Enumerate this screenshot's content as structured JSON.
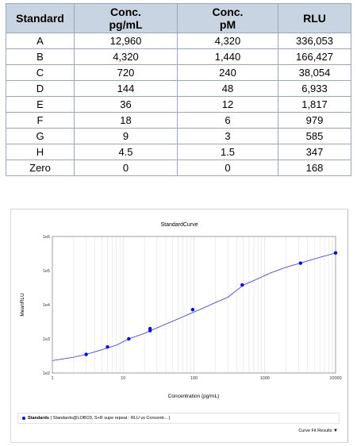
{
  "table": {
    "headers": [
      {
        "line1": "Standard",
        "line2": ""
      },
      {
        "line1": "Conc.",
        "line2": "pg/mL"
      },
      {
        "line1": "Conc.",
        "line2": "pM"
      },
      {
        "line1": "RLU",
        "line2": ""
      }
    ],
    "rows": [
      [
        "A",
        "12,960",
        "4,320",
        "336,053"
      ],
      [
        "B",
        "4,320",
        "1,440",
        "166,427"
      ],
      [
        "C",
        "720",
        "240",
        "38,054"
      ],
      [
        "D",
        "144",
        "48",
        "6,933"
      ],
      [
        "E",
        "36",
        "12",
        "1,817"
      ],
      [
        "F",
        "18",
        "6",
        "979"
      ],
      [
        "G",
        "9",
        "3",
        "585"
      ],
      [
        "H",
        "4.5",
        "1.5",
        "347"
      ],
      [
        "Zero",
        "0",
        "0",
        "168"
      ]
    ]
  },
  "chart_data": {
    "type": "scatter",
    "title": "StandardCurve",
    "xlabel": "Concentration (pg/mL)",
    "ylabel": "MeanRLU",
    "x_scale": "log",
    "y_scale": "log",
    "xlim": [
      1,
      10000
    ],
    "ylim": [
      100,
      1000000
    ],
    "x_tick_labels": [
      "1",
      "10",
      "100",
      "1000",
      "10000"
    ],
    "y_tick_labels": [
      "1e2",
      "1e3",
      "1e4",
      "1e5",
      "1e6"
    ],
    "grid": true,
    "series": [
      {
        "name": "Standards",
        "x": [
          3,
          6,
          12,
          24,
          24,
          96,
          480,
          3200,
          10000
        ],
        "y": [
          350,
          580,
          1000,
          1750,
          2000,
          7200,
          38000,
          166000,
          330000
        ]
      }
    ],
    "fit_curve": {
      "x": [
        1,
        2,
        3,
        5,
        8,
        12,
        20,
        30,
        50,
        80,
        120,
        200,
        300,
        500,
        800,
        1200,
        2000,
        3200,
        5000,
        10000
      ],
      "y": [
        230,
        290,
        350,
        480,
        650,
        1000,
        1450,
        2100,
        3300,
        5000,
        7200,
        11500,
        16500,
        38000,
        58000,
        85000,
        125000,
        166000,
        220000,
        330000
      ]
    },
    "colors": {
      "points": "#0000ee",
      "curve": "#3333cc",
      "grid": "#dddddd"
    },
    "legend": {
      "position": "bottom",
      "label": "Standards",
      "detail": "( Standards@LOBO3, S+R supe repeat : RLU  vs Concentr... )"
    },
    "footer_link": "Curve Fit Results"
  }
}
